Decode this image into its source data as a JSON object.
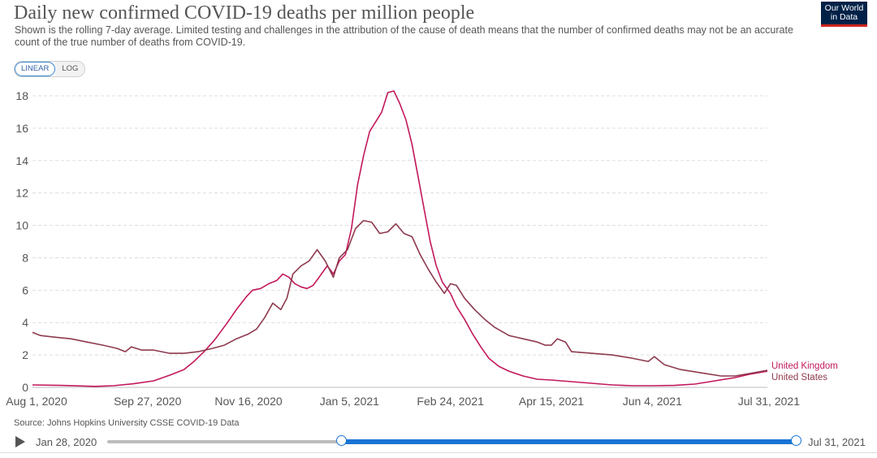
{
  "title": "Daily new confirmed COVID-19 deaths per million people",
  "subtitle": "Shown is the rolling 7-day average. Limited testing and challenges in the attribution of the cause of death means that the number of confirmed deaths may not be an accurate count of the true number of deaths from COVID-19.",
  "logo": {
    "line1": "Our World",
    "line2": "in Data",
    "bg_color": "#002147",
    "accent_color": "#ce261e"
  },
  "scale_toggle": {
    "linear_label": "LINEAR",
    "log_label": "LOG",
    "active": "linear"
  },
  "source": "Source: Johns Hopkins University CSSE COVID-19 Data",
  "timeline": {
    "start_label": "Jan 28, 2020",
    "end_label": "Jul 31, 2021",
    "selected_start_fraction": 0.34,
    "selected_end_fraction": 1.0
  },
  "chart_data": {
    "type": "line",
    "x_type": "date",
    "xlim": [
      "2020-08-01",
      "2021-07-31"
    ],
    "ylim": [
      0,
      18
    ],
    "yticks": [
      0,
      2,
      4,
      6,
      8,
      10,
      12,
      14,
      16,
      18
    ],
    "ytick_labels": [
      "0",
      "2",
      "4",
      "6",
      "8",
      "10",
      "12",
      "14",
      "16",
      "18"
    ],
    "xticks": [
      "2020-08-01",
      "2020-09-27",
      "2020-11-16",
      "2021-01-05",
      "2021-02-24",
      "2021-04-15",
      "2021-06-04",
      "2021-07-31"
    ],
    "xtick_labels": [
      "Aug 1, 2020",
      "Sep 27, 2020",
      "Nov 16, 2020",
      "Jan 5, 2021",
      "Feb 24, 2021",
      "Apr 15, 2021",
      "Jun 4, 2021",
      "Jul 31, 2021"
    ],
    "grid": "horizontal-dashed",
    "legend": "line-end labels",
    "series": [
      {
        "name": "United Kingdom",
        "color": "#c2185b",
        "points": [
          [
            "2020-08-01",
            0.15
          ],
          [
            "2020-08-15",
            0.12
          ],
          [
            "2020-09-01",
            0.06
          ],
          [
            "2020-09-10",
            0.1
          ],
          [
            "2020-09-20",
            0.22
          ],
          [
            "2020-09-30",
            0.4
          ],
          [
            "2020-10-08",
            0.75
          ],
          [
            "2020-10-15",
            1.1
          ],
          [
            "2020-10-20",
            1.6
          ],
          [
            "2020-10-25",
            2.2
          ],
          [
            "2020-10-30",
            2.9
          ],
          [
            "2020-11-05",
            3.9
          ],
          [
            "2020-11-10",
            4.8
          ],
          [
            "2020-11-15",
            5.6
          ],
          [
            "2020-11-18",
            6.0
          ],
          [
            "2020-11-22",
            6.1
          ],
          [
            "2020-11-26",
            6.4
          ],
          [
            "2020-11-30",
            6.6
          ],
          [
            "2020-12-03",
            7.0
          ],
          [
            "2020-12-06",
            6.8
          ],
          [
            "2020-12-09",
            6.4
          ],
          [
            "2020-12-12",
            6.2
          ],
          [
            "2020-12-15",
            6.1
          ],
          [
            "2020-12-18",
            6.3
          ],
          [
            "2020-12-21",
            6.8
          ],
          [
            "2020-12-25",
            7.5
          ],
          [
            "2020-12-28",
            7.0
          ],
          [
            "2020-12-31",
            7.8
          ],
          [
            "2021-01-03",
            8.2
          ],
          [
            "2021-01-06",
            9.8
          ],
          [
            "2021-01-09",
            12.5
          ],
          [
            "2021-01-12",
            14.3
          ],
          [
            "2021-01-15",
            15.8
          ],
          [
            "2021-01-18",
            16.4
          ],
          [
            "2021-01-21",
            17.0
          ],
          [
            "2021-01-24",
            18.2
          ],
          [
            "2021-01-27",
            18.3
          ],
          [
            "2021-01-30",
            17.5
          ],
          [
            "2021-02-02",
            16.5
          ],
          [
            "2021-02-05",
            15.0
          ],
          [
            "2021-02-08",
            13.0
          ],
          [
            "2021-02-11",
            11.0
          ],
          [
            "2021-02-14",
            9.0
          ],
          [
            "2021-02-17",
            7.5
          ],
          [
            "2021-02-20",
            6.5
          ],
          [
            "2021-02-24",
            5.8
          ],
          [
            "2021-02-27",
            5.0
          ],
          [
            "2021-03-03",
            4.2
          ],
          [
            "2021-03-07",
            3.3
          ],
          [
            "2021-03-11",
            2.5
          ],
          [
            "2021-03-15",
            1.8
          ],
          [
            "2021-03-20",
            1.3
          ],
          [
            "2021-03-25",
            1.0
          ],
          [
            "2021-04-01",
            0.7
          ],
          [
            "2021-04-08",
            0.5
          ],
          [
            "2021-04-15",
            0.45
          ],
          [
            "2021-04-25",
            0.35
          ],
          [
            "2021-05-05",
            0.25
          ],
          [
            "2021-05-15",
            0.15
          ],
          [
            "2021-05-25",
            0.1
          ],
          [
            "2021-06-04",
            0.1
          ],
          [
            "2021-06-15",
            0.12
          ],
          [
            "2021-06-25",
            0.2
          ],
          [
            "2021-07-05",
            0.4
          ],
          [
            "2021-07-15",
            0.6
          ],
          [
            "2021-07-22",
            0.8
          ],
          [
            "2021-07-31",
            1.0
          ]
        ]
      },
      {
        "name": "United States",
        "color": "#8e3a4e",
        "points": [
          [
            "2020-08-01",
            3.4
          ],
          [
            "2020-08-05",
            3.2
          ],
          [
            "2020-08-12",
            3.1
          ],
          [
            "2020-08-20",
            3.0
          ],
          [
            "2020-08-28",
            2.8
          ],
          [
            "2020-09-05",
            2.6
          ],
          [
            "2020-09-12",
            2.4
          ],
          [
            "2020-09-16",
            2.2
          ],
          [
            "2020-09-19",
            2.5
          ],
          [
            "2020-09-24",
            2.3
          ],
          [
            "2020-09-30",
            2.3
          ],
          [
            "2020-10-08",
            2.1
          ],
          [
            "2020-10-15",
            2.1
          ],
          [
            "2020-10-22",
            2.2
          ],
          [
            "2020-10-29",
            2.4
          ],
          [
            "2020-11-04",
            2.6
          ],
          [
            "2020-11-10",
            3.0
          ],
          [
            "2020-11-16",
            3.3
          ],
          [
            "2020-11-20",
            3.6
          ],
          [
            "2020-11-24",
            4.3
          ],
          [
            "2020-11-28",
            5.2
          ],
          [
            "2020-12-02",
            4.8
          ],
          [
            "2020-12-05",
            5.5
          ],
          [
            "2020-12-08",
            7.0
          ],
          [
            "2020-12-12",
            7.5
          ],
          [
            "2020-12-16",
            7.8
          ],
          [
            "2020-12-20",
            8.5
          ],
          [
            "2020-12-24",
            7.8
          ],
          [
            "2020-12-28",
            6.8
          ],
          [
            "2020-12-31",
            8.0
          ],
          [
            "2021-01-04",
            8.5
          ],
          [
            "2021-01-08",
            9.8
          ],
          [
            "2021-01-12",
            10.3
          ],
          [
            "2021-01-16",
            10.2
          ],
          [
            "2021-01-20",
            9.5
          ],
          [
            "2021-01-24",
            9.6
          ],
          [
            "2021-01-28",
            10.1
          ],
          [
            "2021-02-01",
            9.5
          ],
          [
            "2021-02-05",
            9.3
          ],
          [
            "2021-02-09",
            8.2
          ],
          [
            "2021-02-13",
            7.3
          ],
          [
            "2021-02-17",
            6.5
          ],
          [
            "2021-02-21",
            5.8
          ],
          [
            "2021-02-24",
            6.4
          ],
          [
            "2021-02-27",
            6.3
          ],
          [
            "2021-03-03",
            5.5
          ],
          [
            "2021-03-08",
            4.8
          ],
          [
            "2021-03-13",
            4.2
          ],
          [
            "2021-03-18",
            3.7
          ],
          [
            "2021-03-25",
            3.2
          ],
          [
            "2021-04-01",
            3.0
          ],
          [
            "2021-04-08",
            2.8
          ],
          [
            "2021-04-12",
            2.6
          ],
          [
            "2021-04-15",
            2.6
          ],
          [
            "2021-04-18",
            3.0
          ],
          [
            "2021-04-22",
            2.8
          ],
          [
            "2021-04-25",
            2.2
          ],
          [
            "2021-05-05",
            2.1
          ],
          [
            "2021-05-15",
            2.0
          ],
          [
            "2021-05-25",
            1.8
          ],
          [
            "2021-06-02",
            1.6
          ],
          [
            "2021-06-05",
            1.9
          ],
          [
            "2021-06-10",
            1.4
          ],
          [
            "2021-06-18",
            1.1
          ],
          [
            "2021-06-28",
            0.9
          ],
          [
            "2021-07-08",
            0.7
          ],
          [
            "2021-07-15",
            0.7
          ],
          [
            "2021-07-22",
            0.85
          ],
          [
            "2021-07-31",
            1.05
          ]
        ]
      }
    ]
  }
}
